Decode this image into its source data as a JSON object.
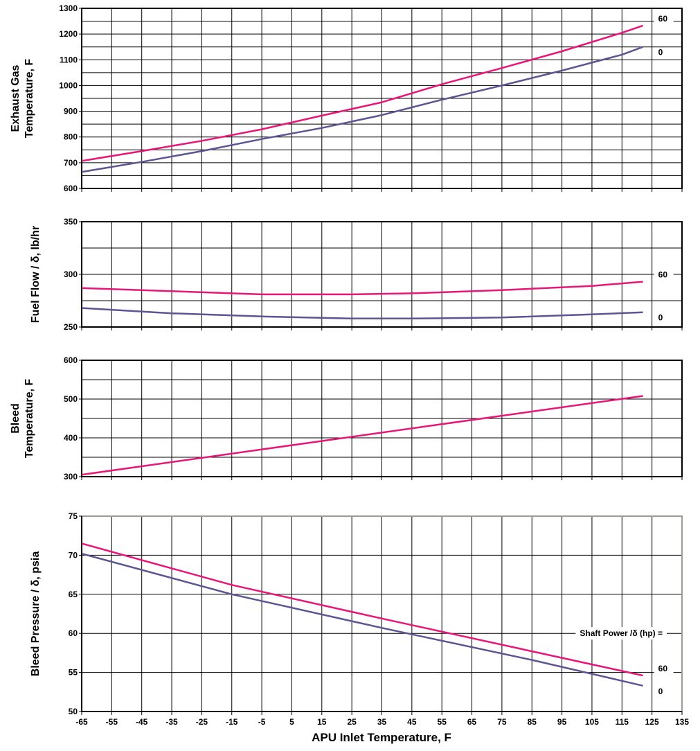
{
  "chart_data": [
    {
      "type": "line",
      "ylabel_lines": [
        "Exhaust Gas",
        "Temperature, F"
      ],
      "ylim": [
        600,
        1300
      ],
      "yticks": [
        600,
        700,
        800,
        900,
        1000,
        1100,
        1200,
        1300
      ],
      "xlim": [
        -65,
        135
      ],
      "x_tick_step": 10,
      "y_grid_step": 50,
      "grid": true,
      "series": [
        {
          "name": "60",
          "color": "#e8157a",
          "x": [
            -65,
            -45,
            -25,
            -5,
            15,
            35,
            55,
            75,
            95,
            115,
            122
          ],
          "y": [
            707,
            745,
            785,
            830,
            883,
            935,
            1005,
            1068,
            1133,
            1205,
            1233
          ]
        },
        {
          "name": "0",
          "color": "#5b5592",
          "x": [
            -65,
            -45,
            -25,
            -5,
            15,
            35,
            55,
            75,
            95,
            115,
            122
          ],
          "y": [
            664,
            703,
            745,
            792,
            835,
            885,
            945,
            1000,
            1058,
            1120,
            1150
          ]
        }
      ]
    },
    {
      "type": "line",
      "ylabel_lines": [
        "Fuel Flow / δ, lb/hr"
      ],
      "ylim": [
        250,
        350
      ],
      "yticks": [
        250,
        300,
        350
      ],
      "xlim": [
        -65,
        135
      ],
      "x_tick_step": 10,
      "y_grid_step": 25,
      "grid": true,
      "series": [
        {
          "name": "60",
          "color": "#e8157a",
          "x": [
            -65,
            -35,
            -5,
            25,
            45,
            75,
            105,
            122
          ],
          "y": [
            287,
            284,
            281,
            281,
            282,
            285,
            289,
            293
          ]
        },
        {
          "name": "0",
          "color": "#5b5592",
          "x": [
            -65,
            -35,
            -5,
            25,
            45,
            75,
            105,
            122
          ],
          "y": [
            268,
            263,
            260,
            258,
            258,
            259,
            262,
            264
          ]
        }
      ]
    },
    {
      "type": "line",
      "ylabel_lines": [
        "Bleed",
        "Temperature, F"
      ],
      "ylim": [
        300,
        600
      ],
      "yticks": [
        300,
        400,
        500,
        600
      ],
      "xlim": [
        -65,
        135
      ],
      "x_tick_step": 10,
      "y_grid_step": 50,
      "grid": true,
      "series": [
        {
          "name": "60",
          "color": "#e8157a",
          "x": [
            -65,
            122
          ],
          "y": [
            305,
            508
          ]
        }
      ]
    },
    {
      "type": "line",
      "ylabel_lines": [
        "Bleed Pressure / δ, psia"
      ],
      "ylim": [
        50,
        75
      ],
      "yticks": [
        50,
        55,
        60,
        65,
        70,
        75
      ],
      "xlim": [
        -65,
        135
      ],
      "x_tick_step": 10,
      "y_grid_step": 5,
      "grid": true,
      "series": [
        {
          "name": "60",
          "color": "#e8157a",
          "x": [
            -65,
            -15,
            35,
            85,
            122
          ],
          "y": [
            71.5,
            66.2,
            61.9,
            57.7,
            54.6
          ]
        },
        {
          "name": "0",
          "color": "#5b5592",
          "x": [
            -65,
            -15,
            35,
            85,
            122
          ],
          "y": [
            70.2,
            65.0,
            60.7,
            56.6,
            53.3
          ]
        }
      ]
    }
  ],
  "shared": {
    "xlabel": "APU Inlet Temperature, F",
    "xticks": [
      -65,
      -55,
      -45,
      -35,
      -25,
      -15,
      -5,
      5,
      15,
      25,
      35,
      45,
      55,
      65,
      75,
      85,
      95,
      105,
      115,
      125,
      135
    ],
    "legend_caption": "Shaft Power /δ (hp) ="
  }
}
